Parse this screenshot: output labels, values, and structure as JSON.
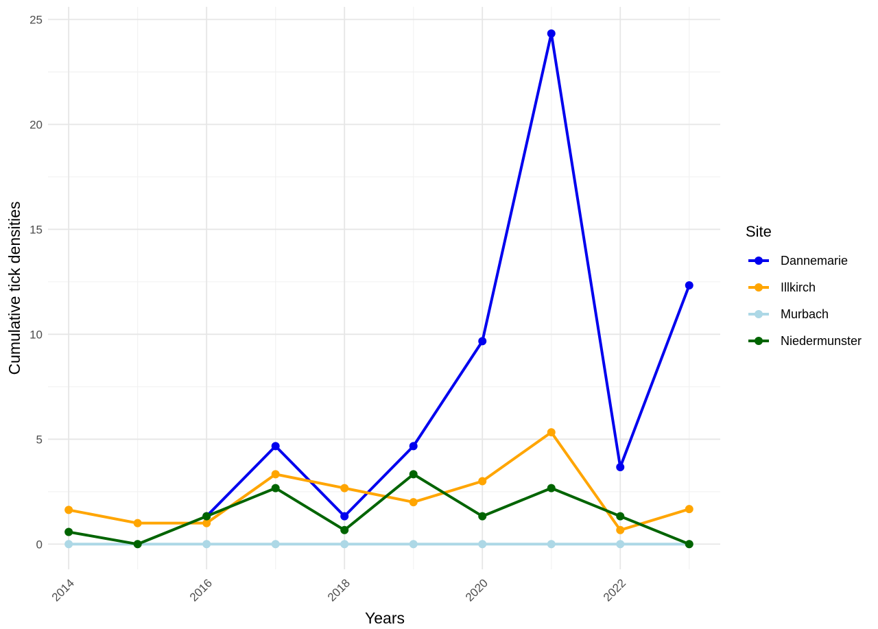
{
  "chart_data": {
    "type": "line",
    "title": "",
    "xlabel": "Years",
    "ylabel": "Cumulative tick densities",
    "x": [
      2014,
      2015,
      2016,
      2017,
      2018,
      2019,
      2020,
      2021,
      2022,
      2023
    ],
    "xticks": [
      "2014",
      "2016",
      "2018",
      "2020",
      "2022"
    ],
    "yticks": [
      "0",
      "5",
      "10",
      "15",
      "20",
      "25"
    ],
    "xlim": [
      2013.7,
      2023.45
    ],
    "ylim": [
      -1.2,
      25.6
    ],
    "grid": true,
    "legend": {
      "title": "Site",
      "position": "right"
    },
    "series": [
      {
        "name": "Dannemarie",
        "color": "#0000ee",
        "values": [
          null,
          null,
          1.33,
          4.67,
          1.33,
          4.67,
          9.67,
          24.33,
          3.67,
          12.33
        ]
      },
      {
        "name": "Illkirch",
        "color": "#ffa500",
        "values": [
          1.63,
          1.0,
          1.0,
          3.33,
          2.67,
          2.0,
          3.0,
          5.33,
          0.67,
          1.67
        ]
      },
      {
        "name": "Murbach",
        "color": "#add8e6",
        "values": [
          0,
          0,
          0,
          0,
          0,
          0,
          0,
          0,
          0,
          0
        ]
      },
      {
        "name": "Niedermunster",
        "color": "#006400",
        "values": [
          0.58,
          0,
          1.33,
          2.67,
          0.67,
          3.33,
          1.33,
          2.67,
          1.33,
          0
        ]
      }
    ]
  }
}
